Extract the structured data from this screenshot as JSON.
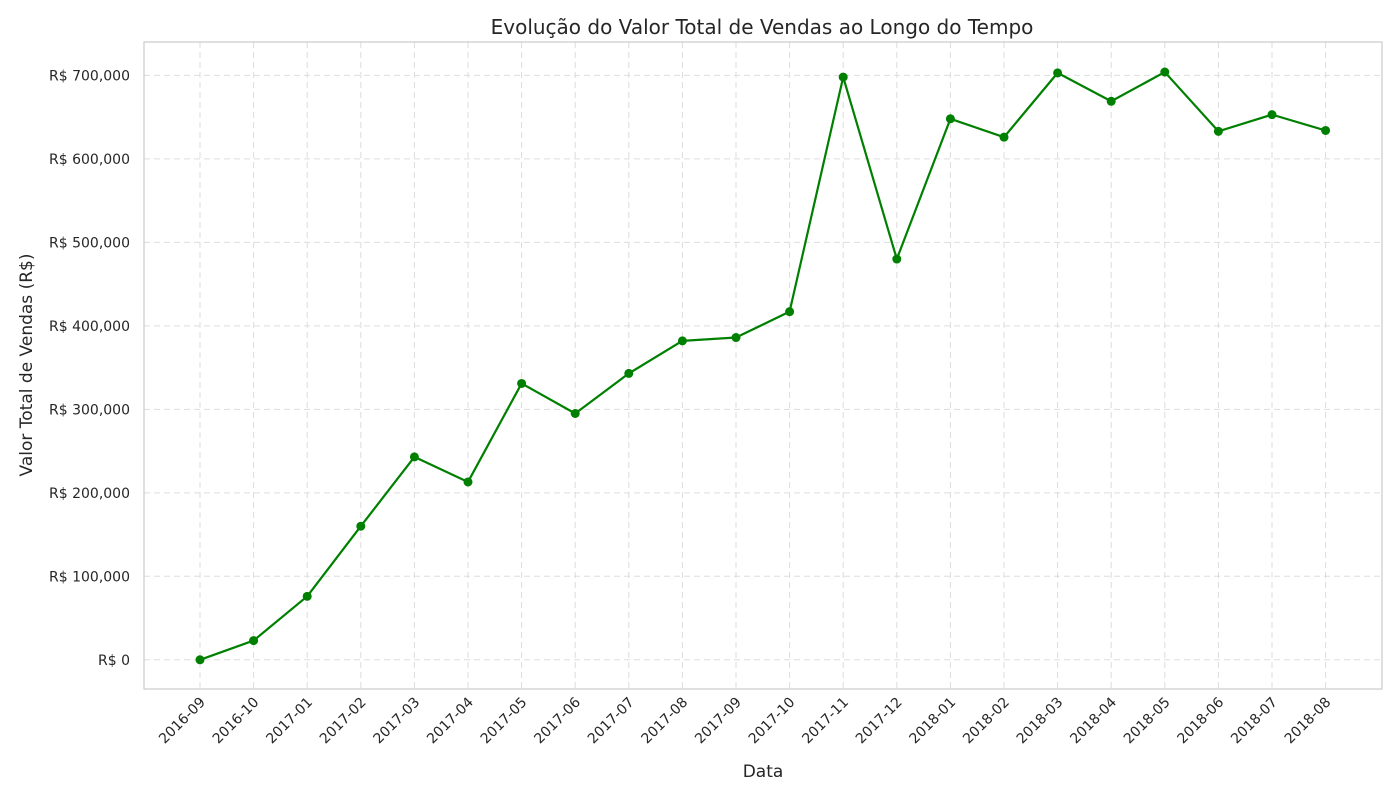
{
  "chart_data": {
    "type": "line",
    "title": "Evolução do Valor Total de Vendas ao Longo do Tempo",
    "xlabel": "Data",
    "ylabel": "Valor Total de Vendas (R$)",
    "ylim": [
      -35000,
      740000
    ],
    "y_ticks": [
      0,
      100000,
      200000,
      300000,
      400000,
      500000,
      600000,
      700000
    ],
    "y_tick_labels": [
      "R$ 0",
      "R$ 100,000",
      "R$ 200,000",
      "R$ 300,000",
      "R$ 400,000",
      "R$ 500,000",
      "R$ 600,000",
      "R$ 700,000"
    ],
    "categories": [
      "2016-09",
      "2016-10",
      "2017-01",
      "2017-02",
      "2017-03",
      "2017-04",
      "2017-05",
      "2017-06",
      "2017-07",
      "2017-08",
      "2017-09",
      "2017-10",
      "2017-11",
      "2017-12",
      "2018-01",
      "2018-02",
      "2018-03",
      "2018-04",
      "2018-05",
      "2018-06",
      "2018-07",
      "2018-08"
    ],
    "series": [
      {
        "color": "#008000",
        "values": [
          0,
          23000,
          76000,
          160000,
          243000,
          213000,
          331000,
          295000,
          343000,
          382000,
          386000,
          417000,
          698000,
          480000,
          648000,
          626000,
          703000,
          669000,
          704000,
          633000,
          653000,
          634000
        ]
      }
    ],
    "grid": true,
    "marker": "circle"
  }
}
